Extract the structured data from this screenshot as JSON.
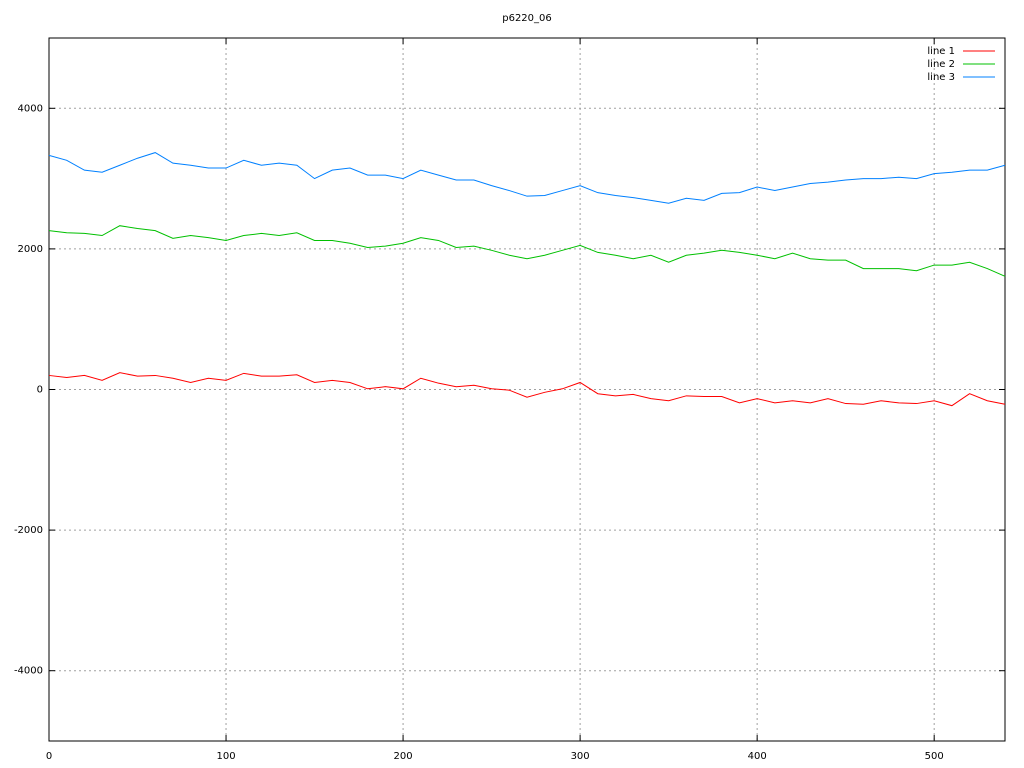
{
  "chart_data": {
    "type": "line",
    "title": "p6220_06",
    "x": [
      0,
      10,
      20,
      30,
      40,
      50,
      60,
      70,
      80,
      90,
      100,
      110,
      120,
      130,
      140,
      150,
      160,
      170,
      180,
      190,
      200,
      210,
      220,
      230,
      240,
      250,
      260,
      270,
      280,
      290,
      300,
      310,
      320,
      330,
      340,
      350,
      360,
      370,
      380,
      390,
      400,
      410,
      420,
      430,
      440,
      450,
      460,
      470,
      480,
      490,
      500,
      510,
      520,
      530,
      540
    ],
    "series": [
      {
        "name": "line 1",
        "color": "#ff0000",
        "values": [
          200,
          170,
          200,
          130,
          240,
          190,
          200,
          160,
          100,
          160,
          130,
          230,
          190,
          190,
          210,
          100,
          130,
          100,
          10,
          40,
          10,
          160,
          90,
          40,
          60,
          10,
          -10,
          -110,
          -40,
          10,
          100,
          -60,
          -90,
          -70,
          -130,
          -160,
          -90,
          -100,
          -100,
          -190,
          -130,
          -190,
          -160,
          -190,
          -130,
          -200,
          -210,
          -160,
          -190,
          -200,
          -160,
          -230,
          -60,
          -160,
          -210
        ]
      },
      {
        "name": "line 2",
        "color": "#00c000",
        "values": [
          2260,
          2230,
          2220,
          2190,
          2330,
          2290,
          2260,
          2150,
          2190,
          2160,
          2120,
          2190,
          2220,
          2190,
          2230,
          2120,
          2120,
          2080,
          2020,
          2040,
          2080,
          2160,
          2120,
          2020,
          2040,
          1980,
          1910,
          1860,
          1910,
          1980,
          2050,
          1950,
          1910,
          1860,
          1910,
          1810,
          1910,
          1940,
          1980,
          1950,
          1910,
          1860,
          1940,
          1860,
          1840,
          1840,
          1720,
          1720,
          1720,
          1690,
          1770,
          1770,
          1810,
          1720,
          1610
        ]
      },
      {
        "name": "line 3",
        "color": "#0080ff",
        "values": [
          3330,
          3260,
          3120,
          3090,
          3190,
          3290,
          3370,
          3220,
          3190,
          3150,
          3150,
          3260,
          3190,
          3220,
          3190,
          3000,
          3120,
          3150,
          3050,
          3050,
          3000,
          3120,
          3050,
          2980,
          2980,
          2900,
          2830,
          2750,
          2760,
          2830,
          2900,
          2800,
          2760,
          2730,
          2690,
          2650,
          2720,
          2690,
          2790,
          2800,
          2880,
          2830,
          2880,
          2930,
          2950,
          2980,
          3000,
          3000,
          3020,
          3000,
          3070,
          3090,
          3120,
          3120,
          3190
        ]
      }
    ],
    "xlim": [
      0,
      540
    ],
    "xticks": [
      0,
      100,
      200,
      300,
      400,
      500
    ],
    "ylim": [
      -5000,
      5000
    ],
    "yticks": [
      -4000,
      -2000,
      0,
      2000,
      4000
    ],
    "grid": true,
    "legend": "top-right"
  }
}
